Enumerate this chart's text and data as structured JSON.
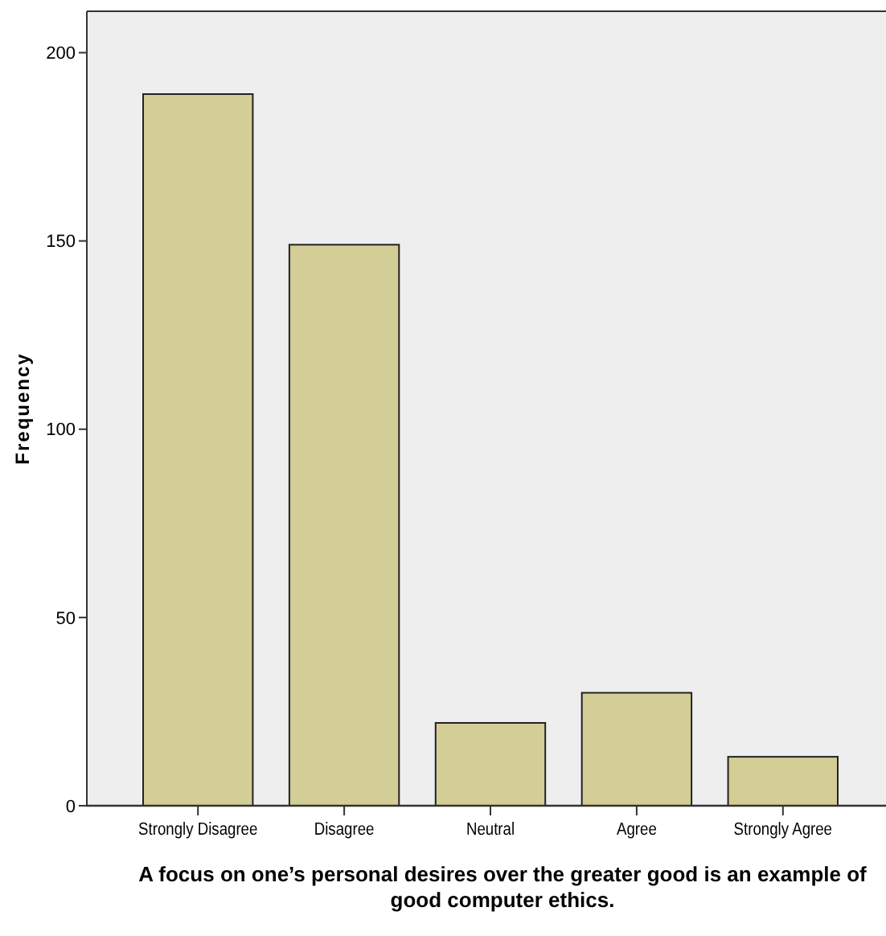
{
  "chart_data": {
    "type": "bar",
    "xlabel": "A focus on one’s personal desires over the greater good is an example of good computer ethics.",
    "ylabel": "Frequency",
    "categories": [
      "Strongly Disagree",
      "Disagree",
      "Neutral",
      "Agree",
      "Strongly Agree"
    ],
    "values": [
      189,
      149,
      22,
      30,
      13
    ],
    "color": "#d3cd96",
    "ylim": [
      0,
      211
    ],
    "yticks": [
      0,
      50,
      100,
      150,
      200
    ],
    "grid": false
  }
}
